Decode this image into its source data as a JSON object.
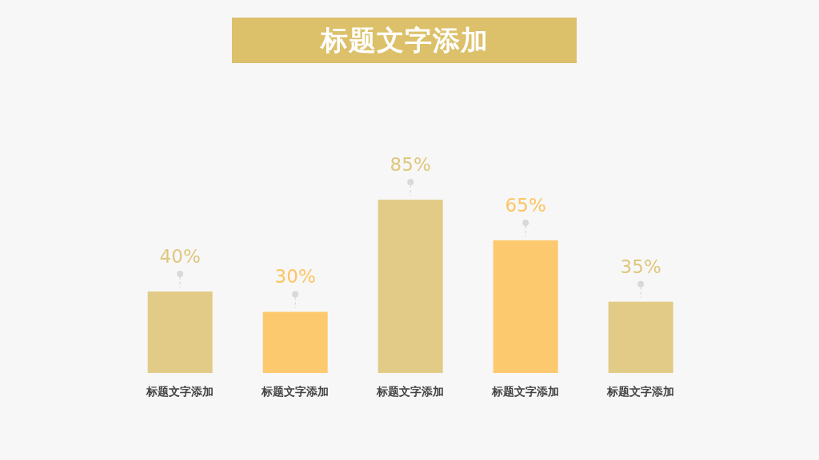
{
  "chart_data": {
    "type": "bar",
    "title": "标题文字添加",
    "categories": [
      "标题文字添加",
      "标题文字添加",
      "标题文字添加",
      "标题文字添加",
      "标题文字添加"
    ],
    "values": [
      40,
      30,
      85,
      65,
      35
    ],
    "colors": [
      "#dfc77d",
      "#fdc462",
      "#dfc77d",
      "#fdc462",
      "#dfc77d"
    ],
    "value_labels": [
      "40%",
      "30%",
      "85%",
      "65%",
      "35%"
    ]
  }
}
